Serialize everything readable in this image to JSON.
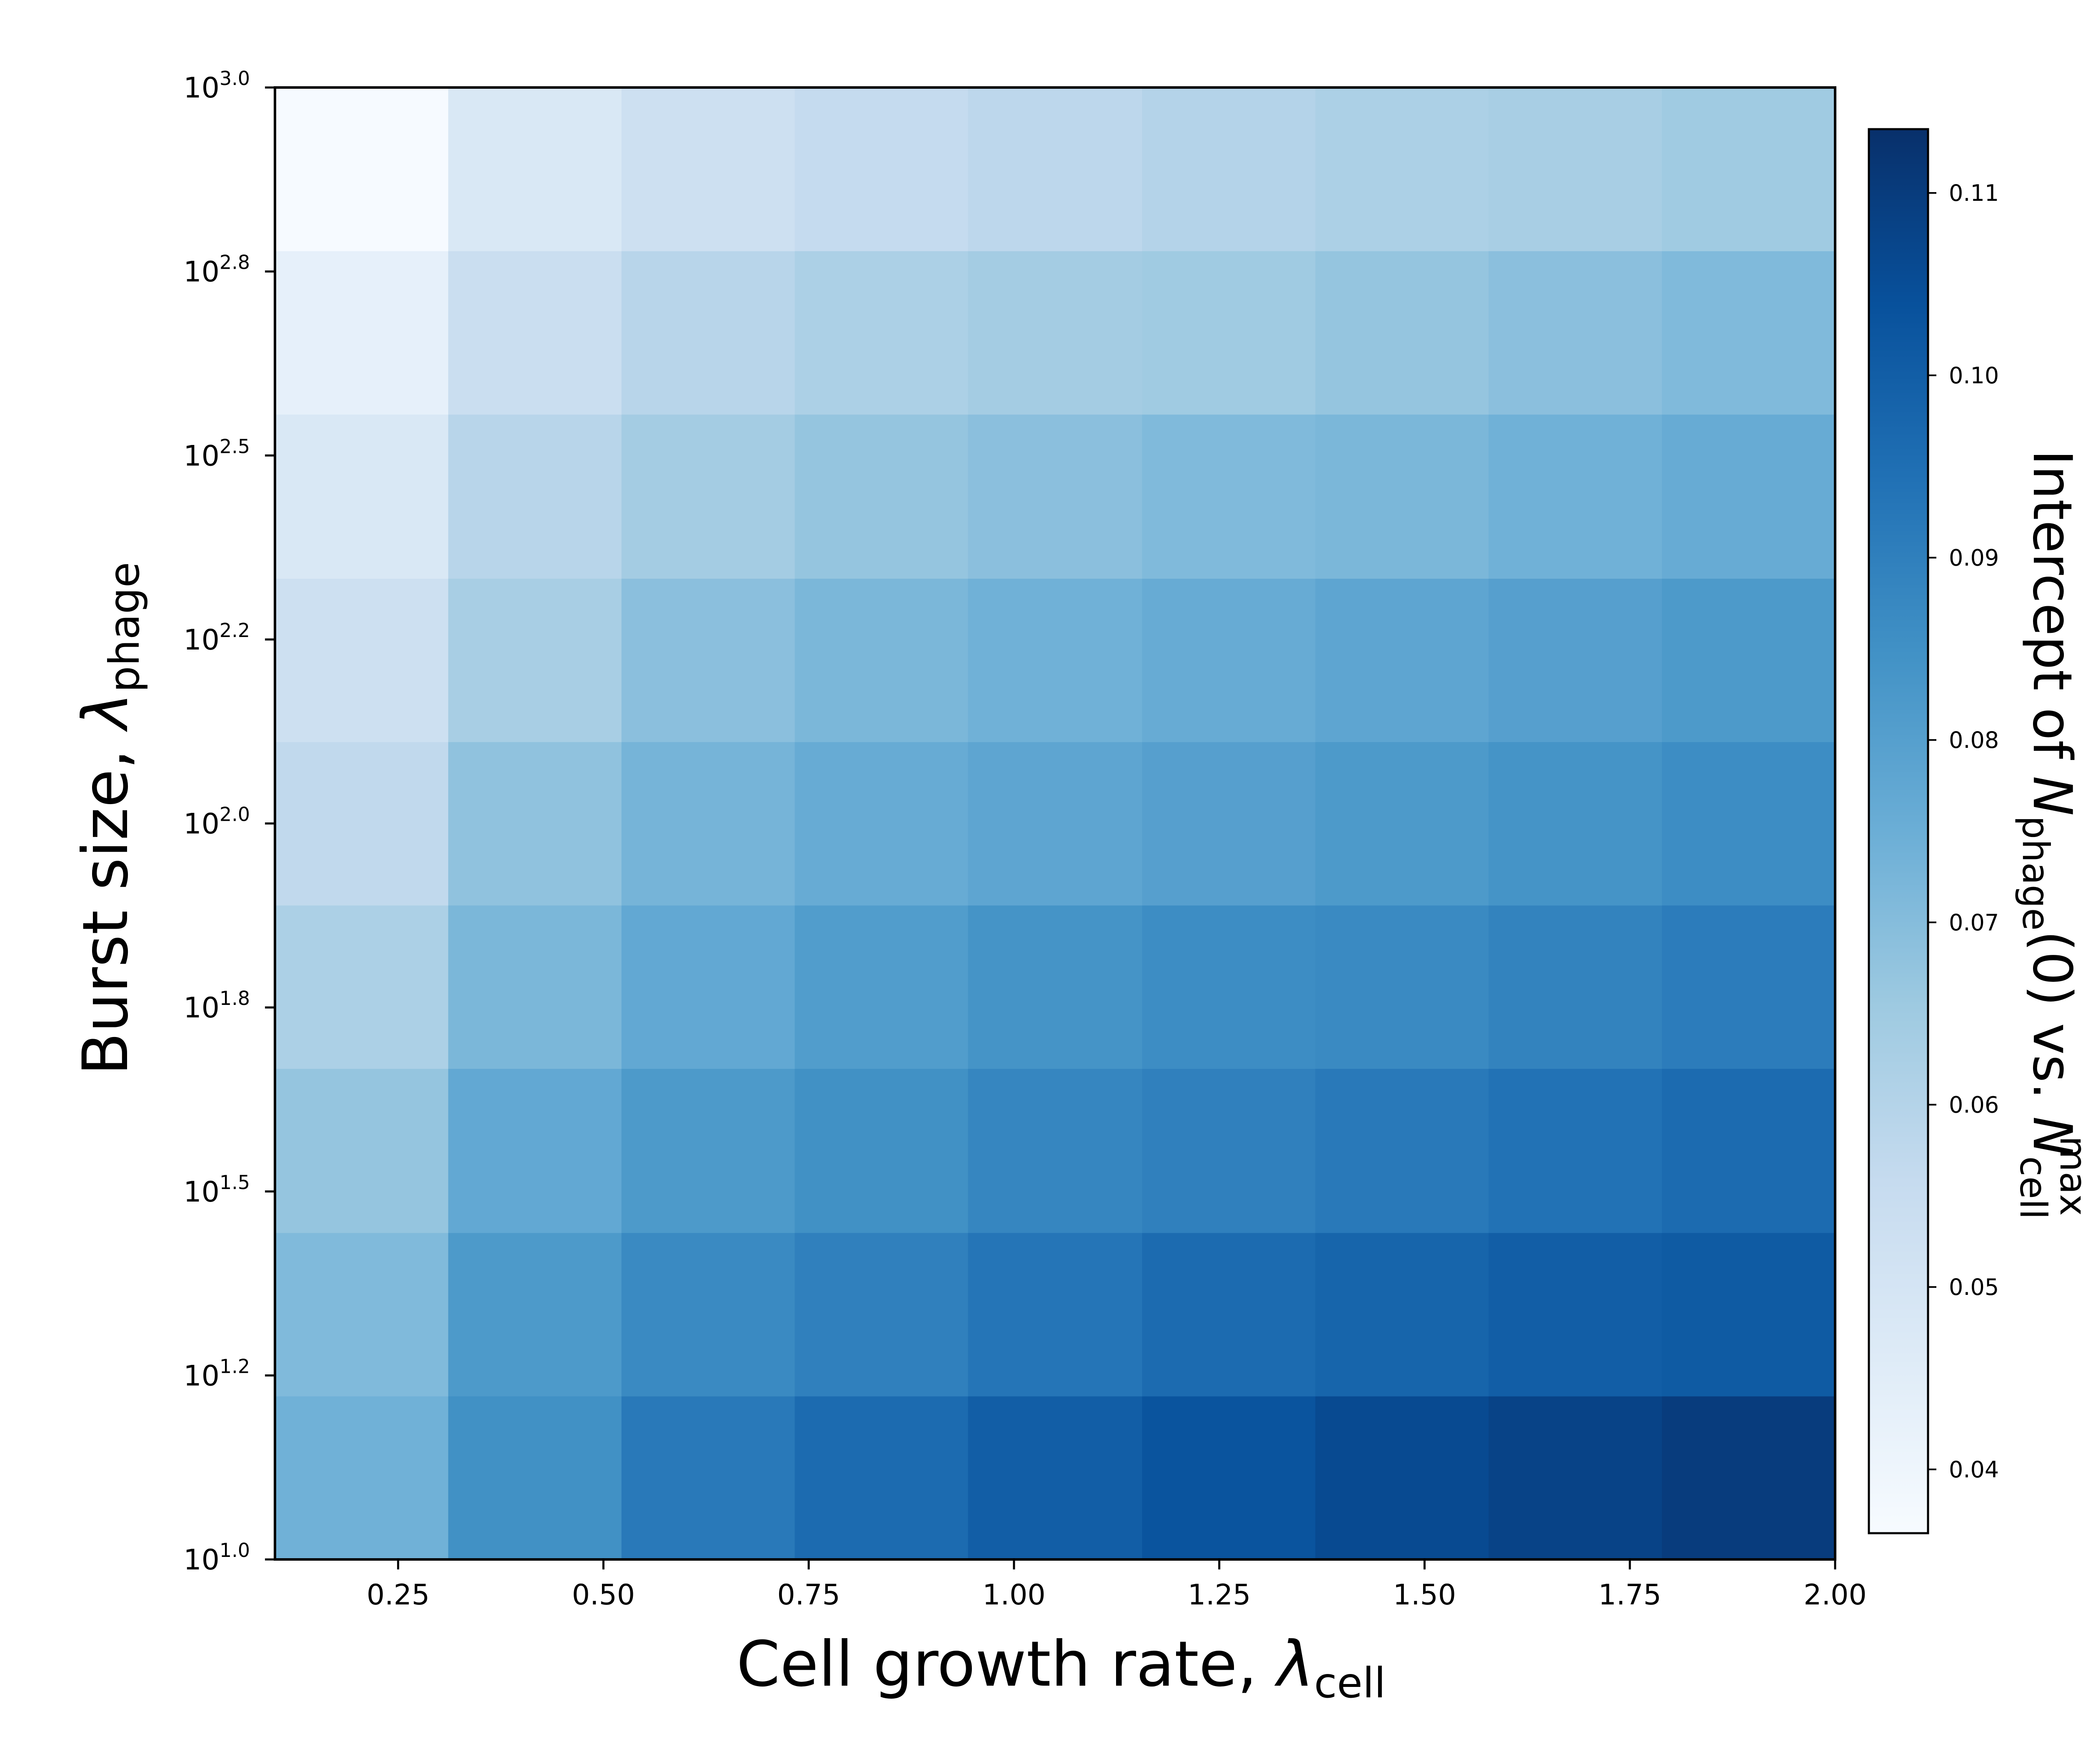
{
  "chart_data": {
    "type": "heatmap",
    "title": "",
    "xlabel": {
      "text": "Cell growth rate, ",
      "symbol": "λ",
      "subscript": "cell"
    },
    "ylabel": {
      "text": "Burst size, ",
      "symbol": "λ",
      "subscript": "phage"
    },
    "colorbar_label": {
      "prefix": "Intercept of ",
      "n1": "N",
      "n1_sub": "phage",
      "middle": "(0) vs. ",
      "n2": "N",
      "n2_sub": "cell",
      "n2_sup": "max"
    },
    "colormap": "Blues",
    "x_ticks": [
      "0.25",
      "0.50",
      "0.75",
      "1.00",
      "1.25",
      "1.50",
      "1.75",
      "2.00"
    ],
    "x_tick_values": [
      0.25,
      0.5,
      0.75,
      1.0,
      1.25,
      1.5,
      1.75,
      2.0
    ],
    "xlim": [
      0.1,
      2.0
    ],
    "y_ticks": [
      {
        "base": "10",
        "exp": "1.0"
      },
      {
        "base": "10",
        "exp": "1.2"
      },
      {
        "base": "10",
        "exp": "1.5"
      },
      {
        "base": "10",
        "exp": "1.8"
      },
      {
        "base": "10",
        "exp": "2.0"
      },
      {
        "base": "10",
        "exp": "2.2"
      },
      {
        "base": "10",
        "exp": "2.5"
      },
      {
        "base": "10",
        "exp": "2.8"
      },
      {
        "base": "10",
        "exp": "3.0"
      }
    ],
    "y_tick_values": [
      1.0,
      1.25,
      1.5,
      1.75,
      2.0,
      2.25,
      2.5,
      2.75,
      3.0
    ],
    "ylim_log10": [
      1.0,
      3.0
    ],
    "colorbar_ticks": [
      "0.04",
      "0.05",
      "0.06",
      "0.07",
      "0.08",
      "0.09",
      "0.10",
      "0.11"
    ],
    "colorbar_tick_values": [
      0.04,
      0.05,
      0.06,
      0.07,
      0.08,
      0.09,
      0.1,
      0.11
    ],
    "color_range": [
      0.0365,
      0.1135
    ],
    "x_cell_edges": [
      0.1,
      0.311,
      0.522,
      0.733,
      0.944,
      1.156,
      1.367,
      1.578,
      1.789,
      2.0
    ],
    "y_cell_edges_log10": [
      1.0,
      1.222,
      1.444,
      1.667,
      1.889,
      2.111,
      2.333,
      2.556,
      2.778,
      3.0
    ],
    "values": [
      [
        0.074,
        0.085,
        0.092,
        0.096,
        0.1,
        0.103,
        0.106,
        0.108,
        0.11
      ],
      [
        0.071,
        0.082,
        0.087,
        0.09,
        0.093,
        0.096,
        0.098,
        0.1,
        0.101
      ],
      [
        0.067,
        0.077,
        0.082,
        0.085,
        0.088,
        0.09,
        0.092,
        0.094,
        0.096
      ],
      [
        0.062,
        0.072,
        0.077,
        0.081,
        0.084,
        0.086,
        0.087,
        0.089,
        0.091
      ],
      [
        0.057,
        0.068,
        0.073,
        0.076,
        0.078,
        0.08,
        0.082,
        0.084,
        0.086
      ],
      [
        0.053,
        0.063,
        0.069,
        0.072,
        0.074,
        0.076,
        0.078,
        0.08,
        0.082
      ],
      [
        0.048,
        0.059,
        0.064,
        0.067,
        0.069,
        0.071,
        0.072,
        0.074,
        0.076
      ],
      [
        0.043,
        0.054,
        0.059,
        0.062,
        0.064,
        0.065,
        0.067,
        0.069,
        0.071
      ],
      [
        0.037,
        0.048,
        0.053,
        0.056,
        0.058,
        0.06,
        0.062,
        0.063,
        0.065
      ]
    ],
    "grid": false
  }
}
